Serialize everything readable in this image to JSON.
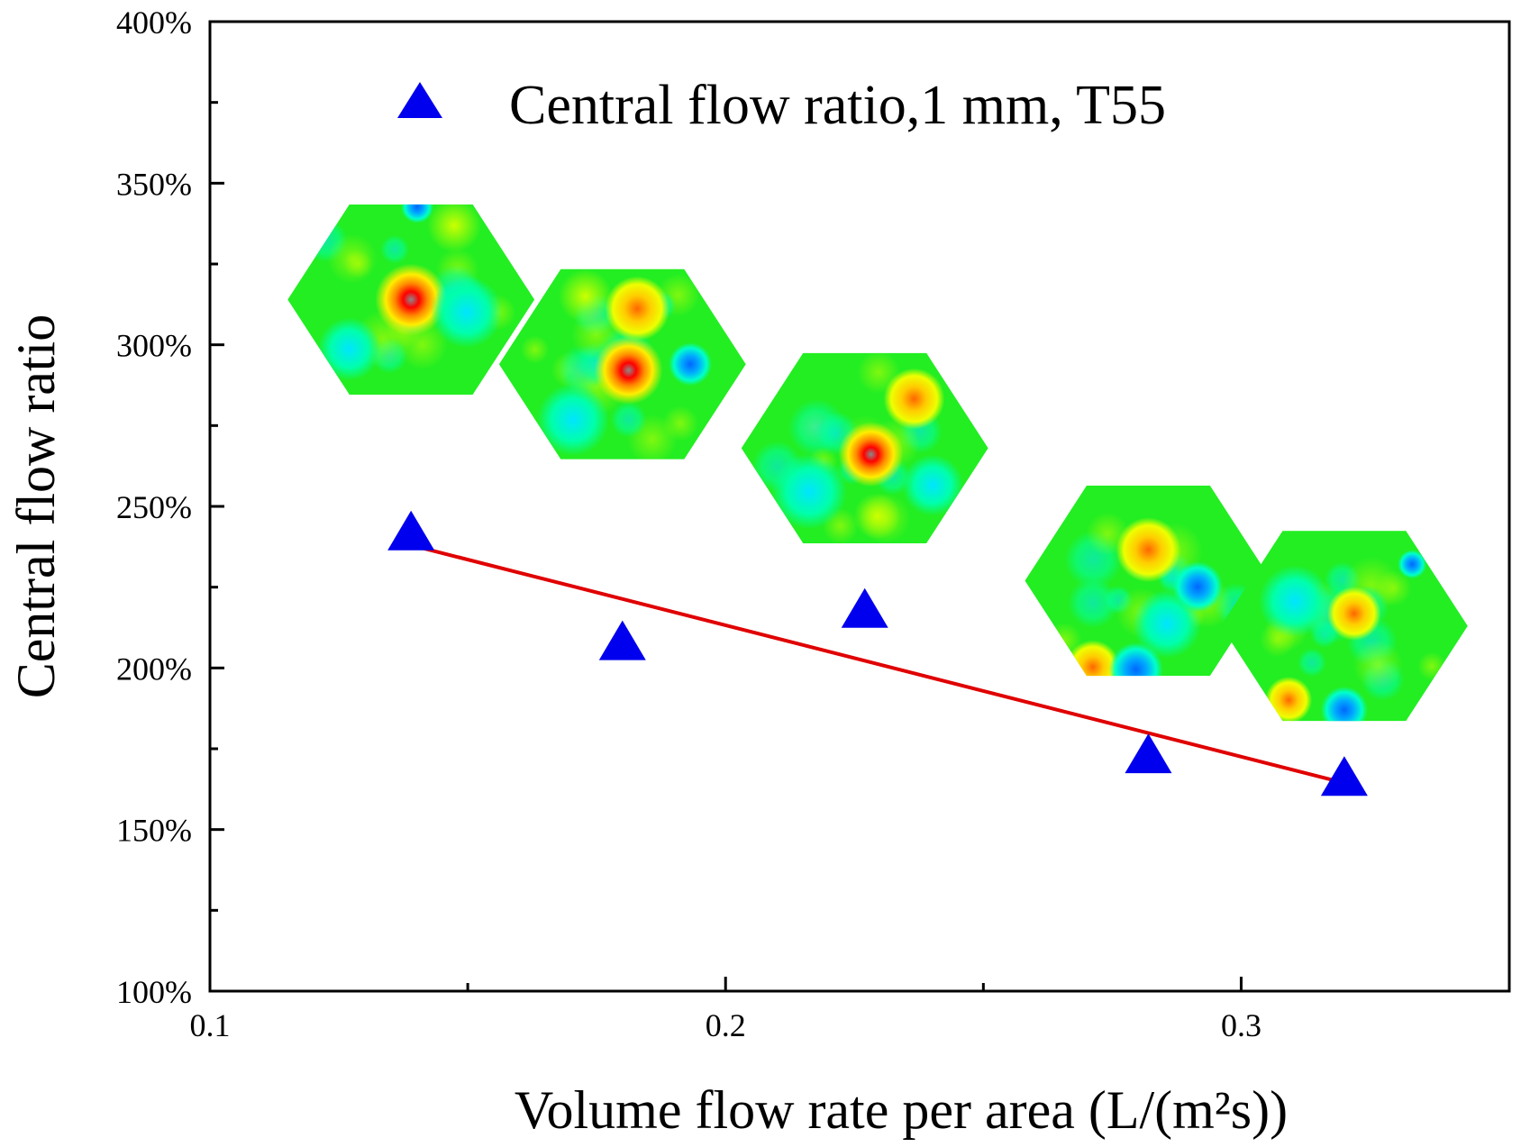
{
  "colors": {
    "marker": "#0000EE",
    "fit_line": "#E00000",
    "axis": "#000000"
  },
  "chart_data": {
    "type": "scatter",
    "title": "",
    "xlabel": "Volume flow rate per area (L/(m²s))",
    "ylabel": "Central flow ratio",
    "xlim": [
      0.1,
      0.352
    ],
    "ylim": [
      100,
      400
    ],
    "x_ticks": [
      0.1,
      0.2,
      0.3
    ],
    "x_tick_labels": [
      "0.1",
      "0.2",
      "0.3"
    ],
    "x_minor_ticks": [
      0.15,
      0.25
    ],
    "y_ticks": [
      100,
      150,
      200,
      250,
      300,
      350,
      400
    ],
    "y_tick_labels": [
      "100%",
      "150%",
      "200%",
      "250%",
      "300%",
      "350%",
      "400%"
    ],
    "y_minor_ticks": [
      125,
      175,
      225,
      275,
      325,
      375
    ],
    "legend_position": "top-center",
    "series": [
      {
        "name": "Central flow ratio,1 mm, T55",
        "marker": "triangle",
        "x": [
          0.139,
          0.18,
          0.227,
          0.282,
          0.32
        ],
        "y": [
          242,
          208,
          218,
          173,
          166
        ]
      }
    ],
    "fit_line": {
      "x": [
        0.139,
        0.321
      ],
      "y": [
        238,
        164
      ]
    },
    "insets": [
      {
        "id": "hex-1",
        "series_point": 0,
        "y_center": 314
      },
      {
        "id": "hex-2",
        "series_point": 1,
        "y_center": 294
      },
      {
        "id": "hex-3",
        "series_point": 2,
        "y_center": 268
      },
      {
        "id": "hex-4",
        "series_point": 3,
        "y_center": 227
      },
      {
        "id": "hex-5",
        "series_point": 4,
        "y_center": 213
      }
    ]
  }
}
